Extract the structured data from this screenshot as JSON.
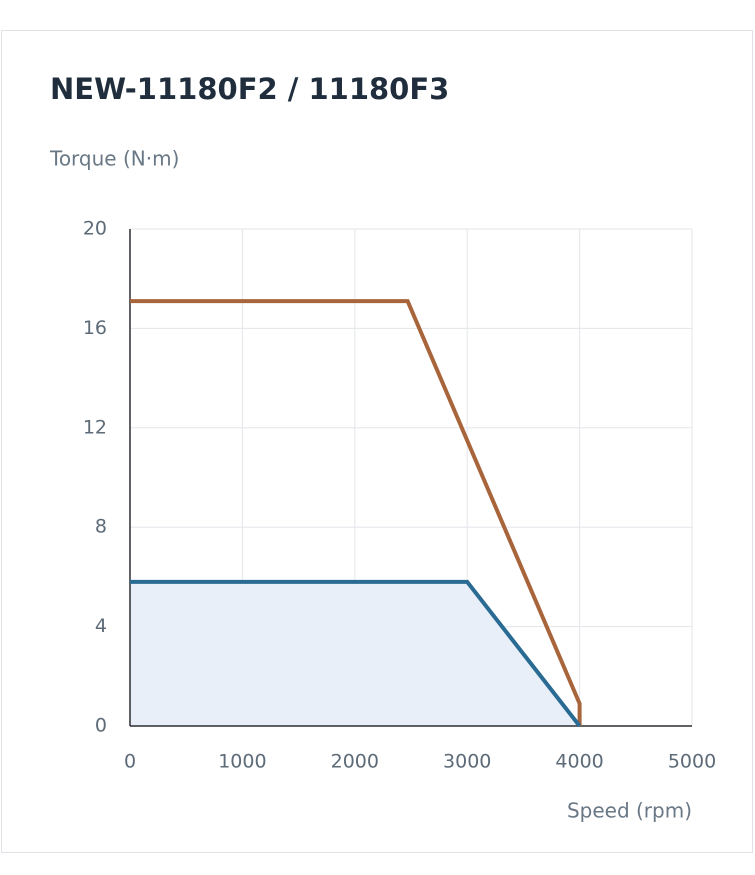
{
  "chart_data": {
    "type": "line",
    "title": "NEW-11180F2 / 11180F3",
    "y_label": "Torque (N·m)",
    "x_label": "Speed (rpm)",
    "xlim": [
      0,
      5000
    ],
    "xticks": [
      0,
      1000,
      2000,
      3000,
      4000,
      5000
    ],
    "ylim": [
      0,
      20
    ],
    "yticks": [
      0,
      4,
      8,
      12,
      16,
      20
    ],
    "grid": true,
    "series": [
      {
        "color": "#a8643a",
        "x": [
          0,
          2470,
          4000,
          4000
        ],
        "values": [
          17.1,
          17.1,
          0.9,
          0
        ]
      },
      {
        "color": "#2a6b94",
        "fill_color": "#e9eff8",
        "x": [
          0,
          3000,
          4000
        ],
        "values": [
          5.8,
          5.8,
          0
        ]
      }
    ]
  }
}
